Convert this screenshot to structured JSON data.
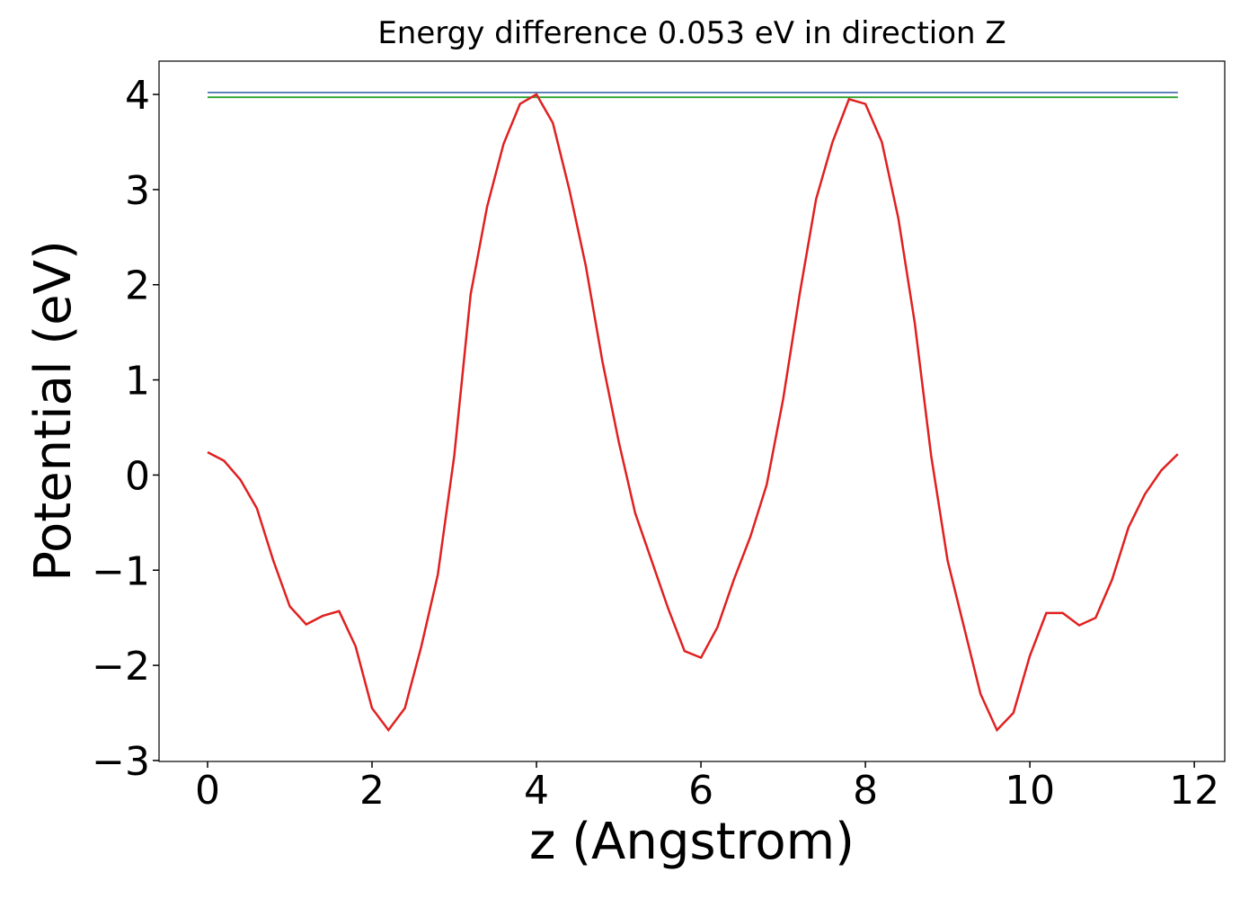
{
  "chart_data": {
    "type": "line",
    "title": "Energy difference 0.053 eV in direction Z",
    "x_label": "z (Angstrom)",
    "y_label": "Potential (eV)",
    "xlim": [
      -0.59,
      12.37
    ],
    "ylim": [
      -3.01,
      4.35
    ],
    "xticks": [
      0,
      2,
      4,
      6,
      8,
      10,
      12
    ],
    "yticks": [
      {
        "value": -3,
        "label": "−3"
      },
      {
        "value": -2,
        "label": "−2"
      },
      {
        "value": -1,
        "label": "−1"
      },
      0,
      1,
      2,
      3,
      4
    ],
    "series": [
      {
        "color": "#e02020",
        "x": [
          0,
          0.2,
          0.4,
          0.6,
          0.8,
          1.0,
          1.2,
          1.4,
          1.6,
          1.8,
          2.0,
          2.2,
          2.4,
          2.6,
          2.8,
          3.0,
          3.2,
          3.4,
          3.6,
          3.8,
          4.0,
          4.2,
          4.4,
          4.6,
          4.8,
          5.0,
          5.2,
          5.4,
          5.6,
          5.8,
          6.0,
          6.2,
          6.4,
          6.6,
          6.8,
          7.0,
          7.2,
          7.4,
          7.6,
          7.8,
          8.0,
          8.2,
          8.4,
          8.6,
          8.8,
          9.0,
          9.2,
          9.4,
          9.6,
          9.8,
          10.0,
          10.2,
          10.4,
          10.6,
          10.8,
          11.0,
          11.2,
          11.4,
          11.6,
          11.8
        ],
        "values": [
          0.24,
          0.15,
          -0.05,
          -0.35,
          -0.9,
          -1.38,
          -1.57,
          -1.48,
          -1.43,
          -1.8,
          -2.45,
          -2.68,
          -2.45,
          -1.8,
          -1.05,
          0.2,
          1.9,
          2.82,
          3.48,
          3.9,
          4.0,
          3.7,
          3.0,
          2.2,
          1.2,
          0.35,
          -0.4,
          -0.9,
          -1.4,
          -1.85,
          -1.92,
          -1.6,
          -1.1,
          -0.65,
          -0.1,
          0.8,
          1.9,
          2.9,
          3.5,
          3.95,
          3.9,
          3.5,
          2.7,
          1.6,
          0.2,
          -0.9,
          -1.6,
          -2.3,
          -2.68,
          -2.5,
          -1.9,
          -1.45,
          -1.45,
          -1.58,
          -1.5,
          -1.1,
          -0.55,
          -0.2,
          0.05,
          0.22
        ]
      },
      {
        "color": "#4c72b0",
        "x": [
          0,
          11.8
        ],
        "values": [
          4.02,
          4.02
        ]
      },
      {
        "color": "#2ca02c",
        "x": [
          0,
          11.8
        ],
        "values": [
          3.97,
          3.97
        ]
      }
    ]
  }
}
